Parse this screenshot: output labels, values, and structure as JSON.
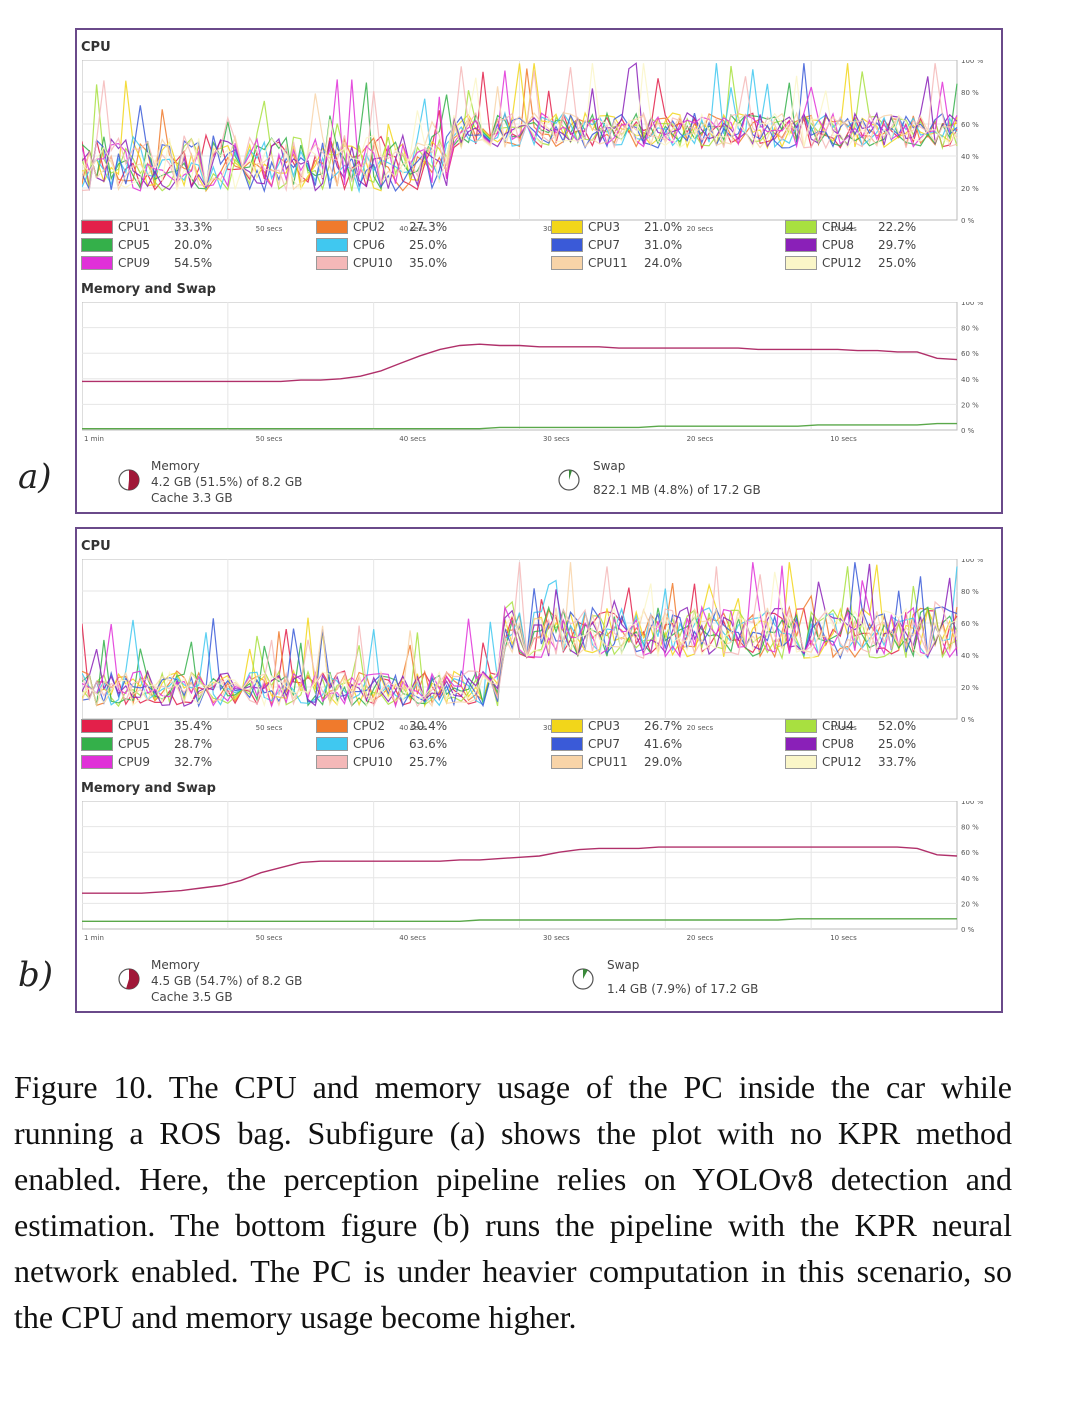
{
  "caption": "Figure 10. The CPU and memory usage of the PC inside the car while running a ROS bag. Subfigure (a) shows the plot with no KPR method enabled. Here, the perception pipeline relies on YOLOv8 detection and estimation. The bottom figure (b) runs the pipeline with the KPR neural network enabled. The PC is under heavier computation in this scenario, so the CPU and memory usage become higher.",
  "x_ticks": [
    "1 min",
    "50 secs",
    "40 secs",
    "30 secs",
    "20 secs",
    "10 secs"
  ],
  "y_ticks": [
    "100 %",
    "80 %",
    "60 %",
    "40 %",
    "20 %",
    "0 %"
  ],
  "cpu_colors": {
    "CPU1": "#e3204a",
    "CPU2": "#f07a2c",
    "CPU3": "#f2d61a",
    "CPU4": "#a8e040",
    "CPU5": "#34b04a",
    "CPU6": "#40c8f0",
    "CPU7": "#3a5ad8",
    "CPU8": "#8a20b8",
    "CPU9": "#e030d8",
    "CPU10": "#f4b8b8",
    "CPU11": "#f8d4a8",
    "CPU12": "#faf6c8"
  },
  "panels": [
    {
      "label": "a)",
      "cpu_title": "CPU",
      "mem_title": "Memory and Swap",
      "cpu_legend": [
        {
          "name": "CPU1",
          "value": "33.3%"
        },
        {
          "name": "CPU5",
          "value": "20.0%"
        },
        {
          "name": "CPU9",
          "value": "54.5%"
        },
        {
          "name": "CPU2",
          "value": "27.3%"
        },
        {
          "name": "CPU6",
          "value": "25.0%"
        },
        {
          "name": "CPU10",
          "value": "35.0%"
        },
        {
          "name": "CPU3",
          "value": "21.0%"
        },
        {
          "name": "CPU7",
          "value": "31.0%"
        },
        {
          "name": "CPU11",
          "value": "24.0%"
        },
        {
          "name": "CPU4",
          "value": "22.2%"
        },
        {
          "name": "CPU8",
          "value": "29.7%"
        },
        {
          "name": "CPU12",
          "value": "25.0%"
        }
      ],
      "memory": {
        "label": "Memory",
        "detail": "4.2 GB (51.5%) of 8.2 GB",
        "cache": "Cache 3.3 GB",
        "pie_fraction": 0.515
      },
      "swap": {
        "label": "Swap",
        "detail": "822.1 MB (4.8%) of 17.2 GB",
        "pie_fraction": 0.048
      },
      "memory_trace": [
        38,
        38,
        38,
        38,
        38,
        38,
        38,
        38,
        38,
        38,
        38,
        39,
        39,
        40,
        42,
        46,
        52,
        58,
        63,
        66,
        67,
        66,
        66,
        65,
        65,
        65,
        65,
        64,
        64,
        64,
        64,
        64,
        64,
        64,
        63,
        63,
        63,
        63,
        63,
        62,
        62,
        61,
        61,
        56,
        55
      ],
      "swap_trace": [
        1,
        1,
        1,
        1,
        1,
        1,
        1,
        1,
        1,
        1,
        1,
        1,
        1,
        1,
        1,
        1,
        1,
        1,
        1,
        1,
        1,
        2,
        2,
        2,
        2,
        2,
        2,
        2,
        2,
        3,
        3,
        3,
        3,
        3,
        3,
        3,
        3,
        4,
        4,
        4,
        4,
        4,
        4,
        5,
        5
      ]
    },
    {
      "label": "b)",
      "cpu_title": "CPU",
      "mem_title": "Memory and Swap",
      "cpu_legend": [
        {
          "name": "CPU1",
          "value": "35.4%"
        },
        {
          "name": "CPU5",
          "value": "28.7%"
        },
        {
          "name": "CPU9",
          "value": "32.7%"
        },
        {
          "name": "CPU2",
          "value": "30.4%"
        },
        {
          "name": "CPU6",
          "value": "63.6%"
        },
        {
          "name": "CPU10",
          "value": "25.7%"
        },
        {
          "name": "CPU3",
          "value": "26.7%"
        },
        {
          "name": "CPU7",
          "value": "41.6%"
        },
        {
          "name": "CPU11",
          "value": "29.0%"
        },
        {
          "name": "CPU4",
          "value": "52.0%"
        },
        {
          "name": "CPU8",
          "value": "25.0%"
        },
        {
          "name": "CPU12",
          "value": "33.7%"
        }
      ],
      "memory": {
        "label": "Memory",
        "detail": "4.5 GB (54.7%) of 8.2 GB",
        "cache": "Cache 3.5 GB",
        "pie_fraction": 0.547
      },
      "swap": {
        "label": "Swap",
        "detail": "1.4 GB (7.9%) of 17.2 GB",
        "pie_fraction": 0.079
      },
      "memory_trace": [
        28,
        28,
        28,
        28,
        29,
        30,
        32,
        34,
        38,
        44,
        48,
        52,
        53,
        53,
        53,
        53,
        53,
        53,
        53,
        54,
        54,
        55,
        56,
        57,
        60,
        62,
        63,
        63,
        63,
        64,
        64,
        64,
        64,
        64,
        64,
        64,
        64,
        64,
        64,
        64,
        64,
        64,
        63,
        58,
        57
      ],
      "swap_trace": [
        6,
        6,
        6,
        6,
        6,
        6,
        6,
        6,
        6,
        6,
        6,
        6,
        6,
        6,
        6,
        6,
        6,
        6,
        6,
        6,
        7,
        7,
        7,
        7,
        7,
        7,
        7,
        7,
        7,
        7,
        7,
        7,
        7,
        7,
        7,
        7,
        8,
        8,
        8,
        8,
        8,
        8,
        8,
        8,
        8
      ]
    }
  ]
}
